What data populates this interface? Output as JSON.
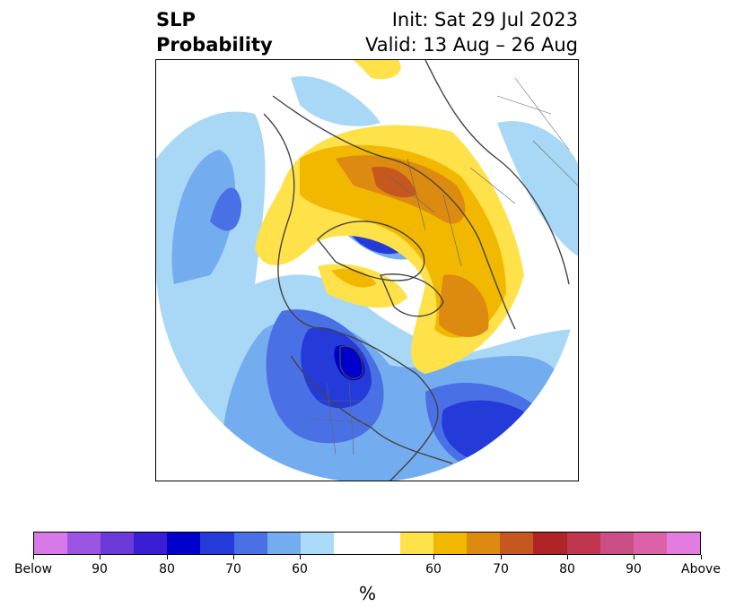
{
  "title": {
    "left_line1": "SLP",
    "left_line2": "Probability",
    "right_line1": "Init: Sat 29 Jul 2023",
    "right_line2": "Valid: 13 Aug – 26 Aug"
  },
  "map": {
    "projection": "north-polar-stereographic",
    "field": "sea level pressure tercile probability",
    "colors": {
      "land_lines": "#444444",
      "below_60": "#a9d8f7",
      "below_70": "#6fa9ee",
      "below_80": "#4b6fe0",
      "below_90": "#2a3fd8",
      "below_max": "#0000cc",
      "above_60": "#ffe14a",
      "above_70": "#f2b200",
      "above_80": "#dc8610",
      "above_90": "#c0541c"
    }
  },
  "colorbar": {
    "label": "%",
    "segments": [
      "#d77ae8",
      "#9b55e2",
      "#6b3ad9",
      "#3a1ed3",
      "#0000cc",
      "#243ad9",
      "#4a70e6",
      "#74acf0",
      "#aadcf9",
      "#ffffff",
      "#ffffff",
      "#ffe14a",
      "#f2b800",
      "#dd8a10",
      "#c4581e",
      "#b02427",
      "#c0364e",
      "#cc4e86",
      "#dc62a8",
      "#e47be0"
    ],
    "tick_labels": [
      "Below",
      "90",
      "80",
      "70",
      "60",
      "60",
      "70",
      "80",
      "90",
      "Above"
    ]
  }
}
